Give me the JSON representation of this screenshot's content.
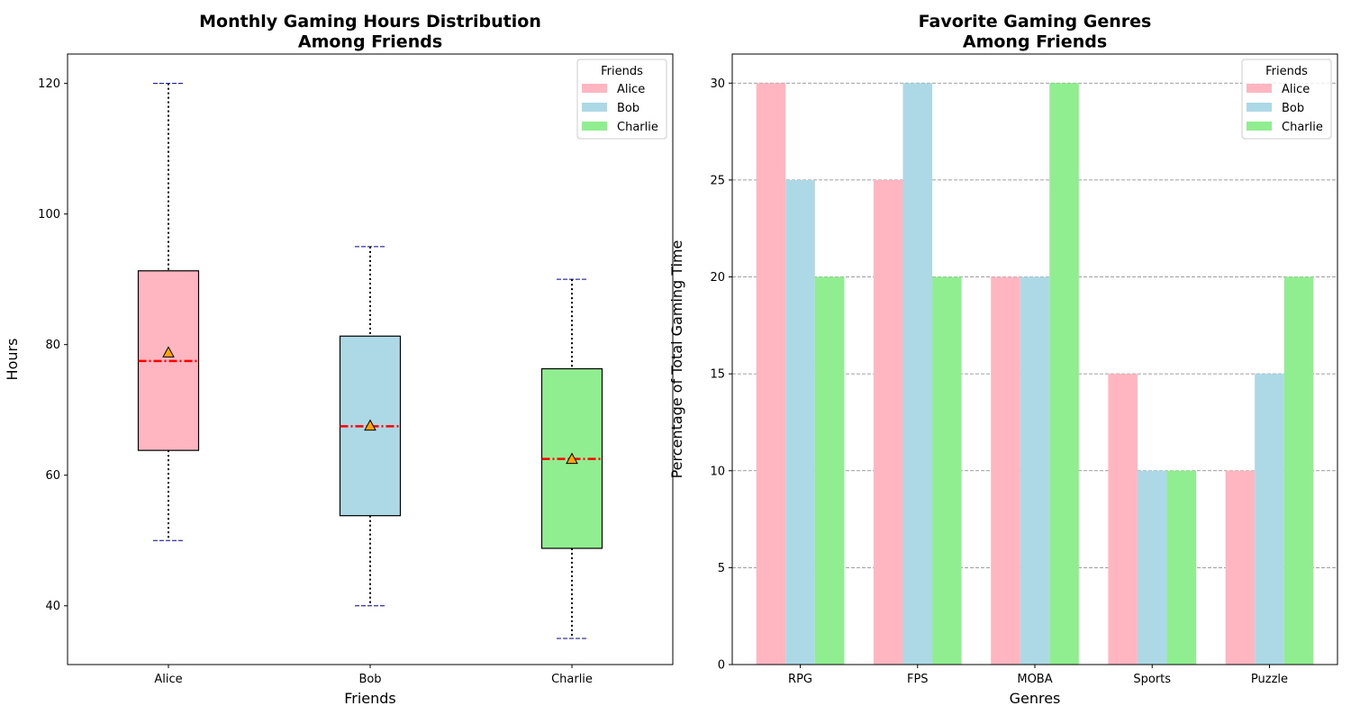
{
  "chart_data": [
    {
      "type": "box",
      "title_lines": [
        "Monthly Gaming Hours Distribution",
        "Among Friends"
      ],
      "xlabel": "Friends",
      "ylabel": "Hours",
      "ylim": [
        31,
        124.5
      ],
      "yticks": [
        40,
        60,
        80,
        100,
        120
      ],
      "categories": [
        "Alice",
        "Bob",
        "Charlie"
      ],
      "boxes": [
        {
          "name": "Alice",
          "whisker_low": 50,
          "q1": 63.8,
          "median": 77.5,
          "mean": 78.8,
          "q3": 91.3,
          "whisker_high": 120
        },
        {
          "name": "Bob",
          "whisker_low": 40,
          "q1": 53.8,
          "median": 67.5,
          "mean": 67.6,
          "q3": 81.3,
          "whisker_high": 95
        },
        {
          "name": "Charlie",
          "whisker_low": 35,
          "q1": 48.8,
          "median": 62.5,
          "mean": 62.5,
          "q3": 76.3,
          "whisker_high": 90
        }
      ],
      "legend_title": "Friends",
      "legend_position": "top-right",
      "legend_entries": [
        "Alice",
        "Bob",
        "Charlie"
      ],
      "grid": false
    },
    {
      "type": "bar",
      "title_lines": [
        "Favorite Gaming Genres",
        "Among Friends"
      ],
      "xlabel": "Genres",
      "ylabel": "Percentage of Total Gaming Time",
      "ylim": [
        0,
        31.5
      ],
      "yticks": [
        0,
        5,
        10,
        15,
        20,
        25,
        30
      ],
      "categories": [
        "RPG",
        "FPS",
        "MOBA",
        "Sports",
        "Puzzle"
      ],
      "series": [
        {
          "name": "Alice",
          "values": [
            30,
            25,
            20,
            15,
            10
          ]
        },
        {
          "name": "Bob",
          "values": [
            25,
            30,
            20,
            10,
            15
          ]
        },
        {
          "name": "Charlie",
          "values": [
            20,
            20,
            30,
            10,
            20
          ]
        }
      ],
      "legend_title": "Friends",
      "legend_position": "top-right",
      "grid": true
    }
  ],
  "colors": {
    "Alice": "#ffb6c1",
    "Bob": "#add8e6",
    "Charlie": "#90ee90",
    "median_line": "#ff0000",
    "mean_marker": "#ffa500",
    "whisker_cap": "#00008b",
    "grid": "#808080"
  }
}
